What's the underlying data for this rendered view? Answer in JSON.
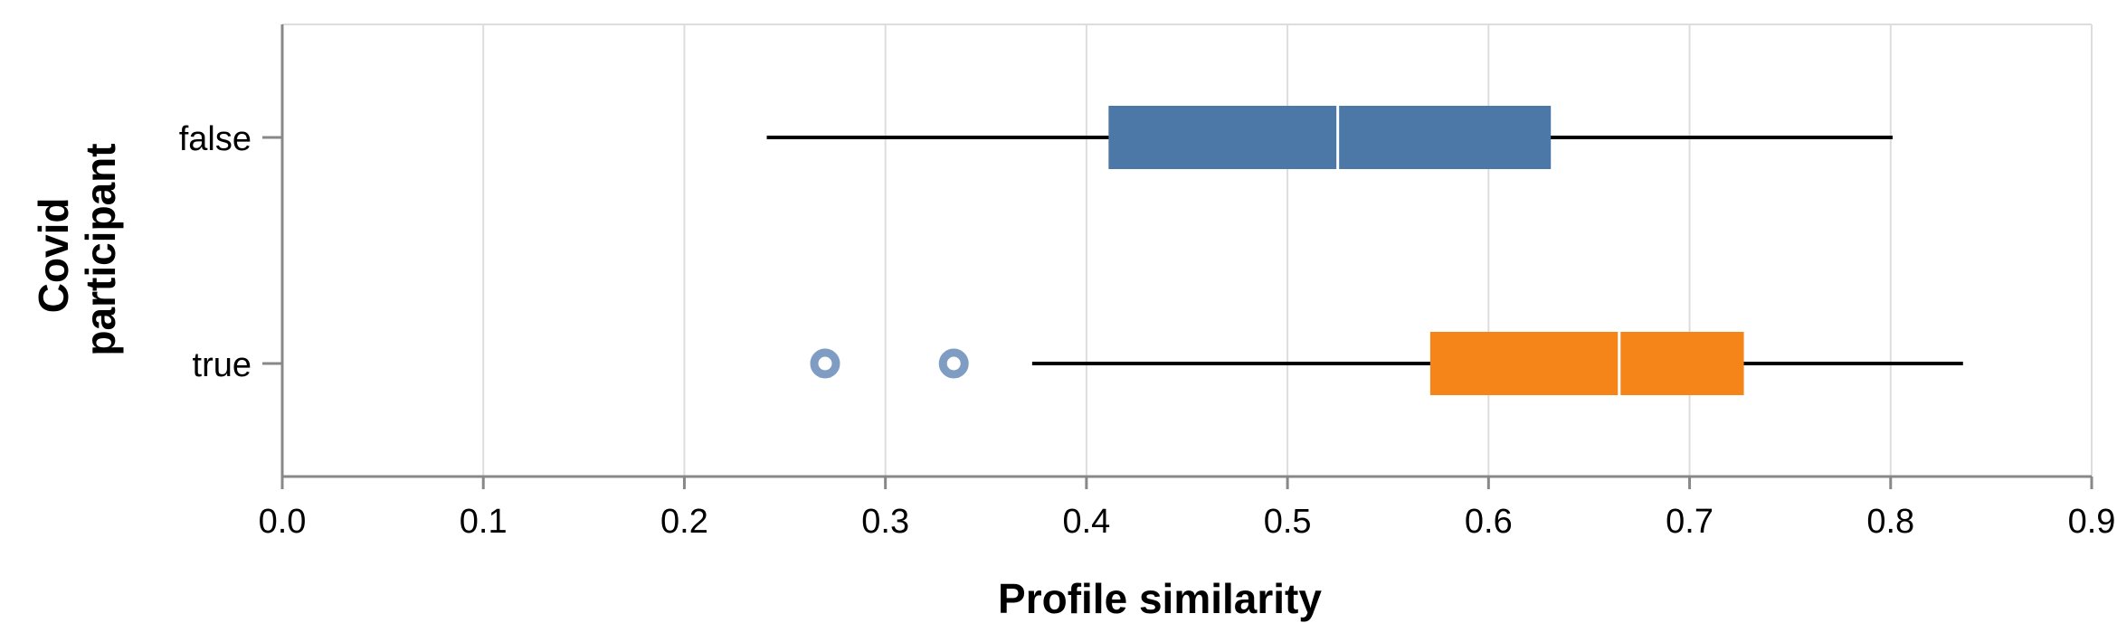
{
  "chart_data": {
    "type": "boxplot",
    "orientation": "horizontal",
    "xlabel": "Profile similarity",
    "ylabel": [
      "Covid",
      "participant"
    ],
    "xlim": [
      0,
      0.9
    ],
    "x_ticks": [
      "0.0",
      "0.1",
      "0.2",
      "0.3",
      "0.4",
      "0.5",
      "0.6",
      "0.7",
      "0.8",
      "0.9"
    ],
    "grid": true,
    "categories": [
      "false",
      "true"
    ],
    "series": [
      {
        "category": "false",
        "color": "#4c78a8",
        "min": 0.241,
        "q1": 0.411,
        "median": 0.525,
        "q3": 0.631,
        "max": 0.801,
        "outliers": []
      },
      {
        "category": "true",
        "color": "#f58518",
        "min": 0.373,
        "q1": 0.571,
        "median": 0.665,
        "q3": 0.727,
        "max": 0.836,
        "outliers": [
          0.27,
          0.334
        ]
      }
    ],
    "outlier_color": "#7f9dc3"
  }
}
